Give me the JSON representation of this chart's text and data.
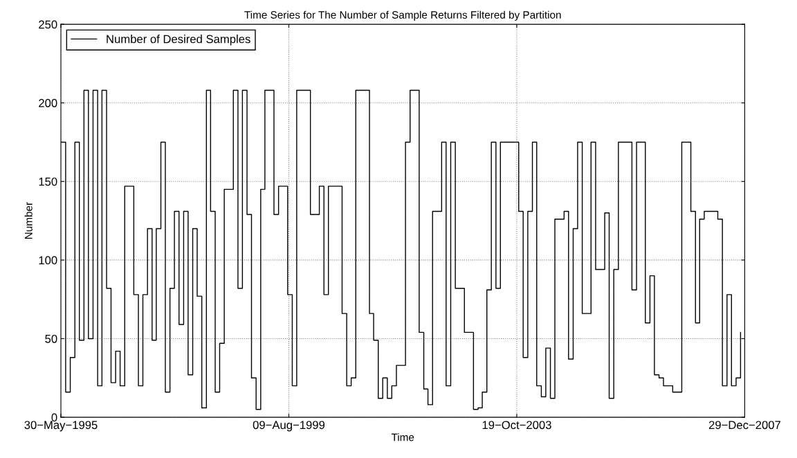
{
  "chart_data": {
    "type": "step",
    "title": "Time Series for The Number of Sample Returns Filtered by Partition",
    "xlabel": "Time",
    "ylabel": "Number",
    "x": [
      "1995-06",
      "1995-07",
      "1995-08",
      "1995-09",
      "1995-10",
      "1995-11",
      "1995-12",
      "1996-01",
      "1996-02",
      "1996-03",
      "1996-04",
      "1996-05",
      "1996-06",
      "1996-07",
      "1996-08",
      "1996-09",
      "1996-10",
      "1996-11",
      "1996-12",
      "1997-01",
      "1997-02",
      "1997-03",
      "1997-04",
      "1997-05",
      "1997-06",
      "1997-07",
      "1997-08",
      "1997-09",
      "1997-10",
      "1997-11",
      "1997-12",
      "1998-01",
      "1998-02",
      "1998-03",
      "1998-04",
      "1998-05",
      "1998-06",
      "1998-07",
      "1998-08",
      "1998-09",
      "1998-10",
      "1998-11",
      "1998-12",
      "1999-01",
      "1999-02",
      "1999-03",
      "1999-04",
      "1999-05",
      "1999-06",
      "1999-07",
      "1999-08",
      "1999-09",
      "1999-10",
      "1999-11",
      "1999-12",
      "2000-01",
      "2000-02",
      "2000-03",
      "2000-04",
      "2000-05",
      "2000-06",
      "2000-07",
      "2000-08",
      "2000-09",
      "2000-10",
      "2000-11",
      "2000-12",
      "2001-01",
      "2001-02",
      "2001-03",
      "2001-04",
      "2001-05",
      "2001-06",
      "2001-07",
      "2001-08",
      "2001-09",
      "2001-10",
      "2001-11",
      "2001-12",
      "2002-01",
      "2002-02",
      "2002-03",
      "2002-04",
      "2002-05",
      "2002-06",
      "2002-07",
      "2002-08",
      "2002-09",
      "2002-10",
      "2002-11",
      "2002-12",
      "2003-01",
      "2003-02",
      "2003-03",
      "2003-04",
      "2003-05",
      "2003-06",
      "2003-07",
      "2003-08",
      "2003-09",
      "2003-10",
      "2003-11",
      "2003-12",
      "2004-01",
      "2004-02",
      "2004-03",
      "2004-04",
      "2004-05",
      "2004-06",
      "2004-07",
      "2004-08",
      "2004-09",
      "2004-10",
      "2004-11",
      "2004-12",
      "2005-01",
      "2005-02",
      "2005-03",
      "2005-04",
      "2005-05",
      "2005-06",
      "2005-07",
      "2005-08",
      "2005-09",
      "2005-10",
      "2005-11",
      "2005-12",
      "2006-01",
      "2006-02",
      "2006-03",
      "2006-04",
      "2006-05",
      "2006-06",
      "2006-07",
      "2006-08",
      "2006-09",
      "2006-10",
      "2006-11",
      "2006-12",
      "2007-01",
      "2007-02",
      "2007-03",
      "2007-04",
      "2007-05",
      "2007-06",
      "2007-07",
      "2007-08",
      "2007-09",
      "2007-10",
      "2007-11",
      "2007-12"
    ],
    "series": [
      {
        "name": "Number of Desired Samples",
        "color": "#000000",
        "values": [
          175,
          16,
          38,
          175,
          49,
          208,
          50,
          208,
          20,
          208,
          82,
          22,
          42,
          20,
          147,
          147,
          78,
          20,
          78,
          120,
          49,
          120,
          175,
          16,
          82,
          131,
          59,
          131,
          27,
          120,
          77,
          6,
          208,
          131,
          16,
          47,
          145,
          145,
          208,
          82,
          208,
          129,
          25,
          5,
          145,
          208,
          208,
          129,
          147,
          147,
          78,
          20,
          208,
          208,
          208,
          129,
          129,
          147,
          78,
          147,
          147,
          147,
          66,
          20,
          25,
          208,
          208,
          208,
          66,
          49,
          12,
          25,
          12,
          20,
          33,
          33,
          175,
          208,
          208,
          54,
          18,
          8,
          131,
          131,
          175,
          20,
          175,
          82,
          82,
          54,
          54,
          5,
          6,
          16,
          81,
          175,
          82,
          175,
          175,
          175,
          175,
          131,
          38,
          131,
          175,
          20,
          13,
          44,
          12,
          126,
          126,
          131,
          37,
          120,
          175,
          66,
          66,
          175,
          94,
          94,
          130,
          12,
          94,
          175,
          175,
          175,
          81,
          175,
          175,
          60,
          90,
          27,
          25,
          20,
          20,
          16,
          16,
          175,
          175,
          131,
          60,
          126,
          131,
          131,
          131,
          126,
          20,
          78,
          20,
          25,
          54
        ]
      }
    ],
    "xlim": [
      "1995-05-30",
      "2007-12-29"
    ],
    "xticks": [
      {
        "value": "1995-05-30",
        "label": "30−May−1995"
      },
      {
        "value": "1999-08-09",
        "label": "09−Aug−1999"
      },
      {
        "value": "2003-10-19",
        "label": "19−Oct−2003"
      },
      {
        "value": "2007-12-29",
        "label": "29−Dec−2007"
      }
    ],
    "ylim": [
      0,
      250
    ],
    "yticks": [
      0,
      50,
      100,
      150,
      200,
      250
    ],
    "grid": true,
    "legend": "top left",
    "line_style": "solid",
    "marker": "none"
  }
}
